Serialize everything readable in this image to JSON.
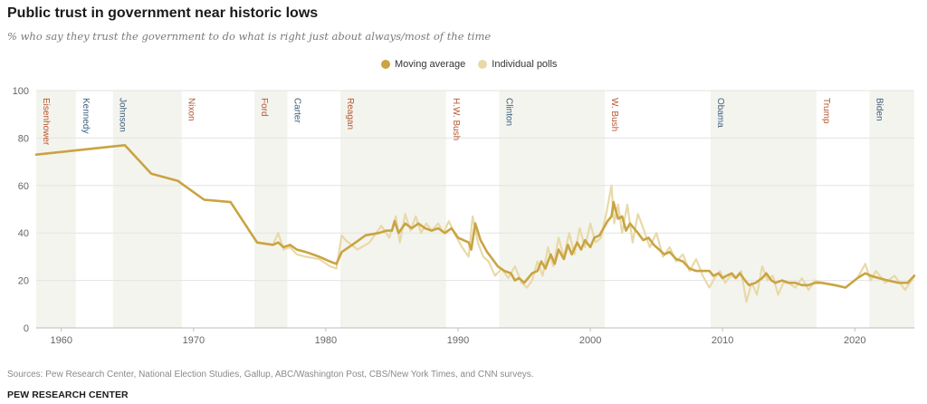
{
  "title": "Public trust in government near historic lows",
  "subtitle": "% who say they trust the government to do what is right just about always/most of the time",
  "legend": {
    "moving_average": "Moving average",
    "individual_polls": "Individual polls"
  },
  "colors": {
    "moving_average": "#c9a442",
    "individual_polls": "#e8d9a8",
    "shade": "#f4f4ee",
    "republican": "#b8562e",
    "democrat": "#3d5f7d",
    "axis_text": "#666666",
    "gridline": "#e3e3e3"
  },
  "source": "Sources: Pew Research Center, National Election Studies, Gallup, ABC/Washington Post, CBS/New York Times, and CNN surveys.",
  "brand": "PEW RESEARCH CENTER",
  "chart_data": {
    "type": "line",
    "title": "Public trust in government near historic lows",
    "xlabel": "",
    "ylabel": "",
    "xlim": [
      1958.1,
      2024.5
    ],
    "ylim": [
      0,
      100
    ],
    "yticks": [
      0,
      20,
      40,
      60,
      80,
      100
    ],
    "xticks": [
      1960,
      1970,
      1980,
      1990,
      2000,
      2010,
      2020
    ],
    "presidents": [
      {
        "name": "Eisenhower",
        "start": 1958.1,
        "end": 1961.1,
        "party": "R",
        "shaded": true
      },
      {
        "name": "Kennedy",
        "start": 1961.1,
        "end": 1963.9,
        "party": "D",
        "shaded": false
      },
      {
        "name": "Johnson",
        "start": 1963.9,
        "end": 1969.1,
        "party": "D",
        "shaded": true
      },
      {
        "name": "Nixon",
        "start": 1969.1,
        "end": 1974.6,
        "party": "R",
        "shaded": false
      },
      {
        "name": "Ford",
        "start": 1974.6,
        "end": 1977.1,
        "party": "R",
        "shaded": true
      },
      {
        "name": "Carter",
        "start": 1977.1,
        "end": 1981.1,
        "party": "D",
        "shaded": false
      },
      {
        "name": "Reagan",
        "start": 1981.1,
        "end": 1989.1,
        "party": "R",
        "shaded": true
      },
      {
        "name": "H.W. Bush",
        "start": 1989.1,
        "end": 1993.1,
        "party": "R",
        "shaded": false
      },
      {
        "name": "Clinton",
        "start": 1993.1,
        "end": 2001.1,
        "party": "D",
        "shaded": true
      },
      {
        "name": "W. Bush",
        "start": 2001.1,
        "end": 2009.1,
        "party": "R",
        "shaded": false
      },
      {
        "name": "Obama",
        "start": 2009.1,
        "end": 2017.1,
        "party": "D",
        "shaded": true
      },
      {
        "name": "Trump",
        "start": 2017.1,
        "end": 2021.1,
        "party": "R",
        "shaded": false
      },
      {
        "name": "Biden",
        "start": 2021.1,
        "end": 2024.5,
        "party": "D",
        "shaded": true
      }
    ],
    "series": [
      {
        "name": "Individual polls",
        "x": [
          1958.1,
          1964.8,
          1966.8,
          1968.8,
          1970.8,
          1972.8,
          1974.8,
          1976.0,
          1976.4,
          1976.8,
          1977.3,
          1977.8,
          1978.5,
          1979.5,
          1980.3,
          1980.8,
          1981.2,
          1981.5,
          1982.4,
          1983.3,
          1984.2,
          1984.8,
          1985.3,
          1985.6,
          1986.0,
          1986.4,
          1986.8,
          1987.2,
          1987.6,
          1988.0,
          1988.5,
          1988.9,
          1989.3,
          1989.8,
          1990.3,
          1990.8,
          1991.1,
          1991.5,
          1991.9,
          1992.3,
          1992.8,
          1993.3,
          1993.8,
          1994.3,
          1994.8,
          1995.2,
          1995.6,
          1996.0,
          1996.4,
          1996.8,
          1997.2,
          1997.6,
          1998.0,
          1998.4,
          1998.8,
          1999.2,
          1999.6,
          2000.0,
          2000.4,
          2000.8,
          2001.2,
          2001.6,
          2001.8,
          2002.1,
          2002.4,
          2002.8,
          2003.2,
          2003.6,
          2004.0,
          2004.5,
          2005.0,
          2005.5,
          2006.0,
          2006.5,
          2007.0,
          2007.5,
          2008.0,
          2008.5,
          2009.0,
          2009.4,
          2009.8,
          2010.2,
          2010.6,
          2011.0,
          2011.4,
          2011.8,
          2012.2,
          2012.6,
          2013.0,
          2013.4,
          2013.8,
          2014.2,
          2014.6,
          2015.0,
          2015.5,
          2016.0,
          2016.5,
          2017.0,
          2017.5,
          2018.5,
          2019.3,
          2020.2,
          2020.8,
          2021.2,
          2021.6,
          2022.3,
          2023.0,
          2023.8,
          2024.5
        ],
        "values": [
          73,
          77,
          65,
          62,
          54,
          53,
          36,
          35,
          40,
          33,
          34,
          31,
          30,
          29,
          26,
          25,
          39,
          37,
          33,
          36,
          43,
          38,
          47,
          36,
          48,
          41,
          47,
          40,
          44,
          41,
          44,
          40,
          45,
          39,
          34,
          30,
          47,
          36,
          30,
          28,
          22,
          25,
          21,
          26,
          19,
          17,
          20,
          28,
          22,
          34,
          26,
          38,
          30,
          40,
          31,
          42,
          34,
          44,
          36,
          38,
          48,
          60,
          44,
          52,
          40,
          52,
          36,
          48,
          42,
          34,
          40,
          30,
          34,
          28,
          31,
          24,
          29,
          22,
          17,
          21,
          24,
          19,
          22,
          21,
          24,
          11,
          19,
          14,
          26,
          20,
          22,
          14,
          19,
          19,
          17,
          21,
          16,
          20,
          19,
          18,
          17,
          21,
          27,
          20,
          24,
          19,
          22,
          16,
          22
        ]
      },
      {
        "name": "Moving average",
        "x": [
          1958.1,
          1964.8,
          1966.8,
          1968.8,
          1970.8,
          1972.8,
          1974.8,
          1976.0,
          1976.4,
          1976.8,
          1977.3,
          1977.8,
          1978.5,
          1979.5,
          1980.3,
          1980.8,
          1981.2,
          1982.0,
          1983.0,
          1984.0,
          1984.6,
          1985.0,
          1985.2,
          1985.5,
          1986.0,
          1986.5,
          1987.0,
          1987.5,
          1988.0,
          1988.5,
          1989.0,
          1989.5,
          1990.0,
          1990.4,
          1990.8,
          1991.0,
          1991.3,
          1991.7,
          1992.2,
          1992.6,
          1993.0,
          1993.5,
          1994.0,
          1994.3,
          1994.6,
          1995.0,
          1995.3,
          1995.6,
          1996.0,
          1996.3,
          1996.6,
          1997.0,
          1997.3,
          1997.6,
          1998.0,
          1998.3,
          1998.6,
          1999.0,
          1999.3,
          1999.6,
          2000.0,
          2000.3,
          2000.7,
          2001.0,
          2001.3,
          2001.6,
          2001.75,
          2001.9,
          2002.1,
          2002.4,
          2002.7,
          2003.0,
          2003.3,
          2003.6,
          2004.0,
          2004.4,
          2004.8,
          2005.2,
          2005.6,
          2006.0,
          2006.5,
          2007.0,
          2007.5,
          2008.0,
          2008.5,
          2009.0,
          2009.3,
          2009.7,
          2010.0,
          2010.3,
          2010.7,
          2011.0,
          2011.3,
          2011.7,
          2012.0,
          2012.5,
          2013.0,
          2013.3,
          2013.7,
          2014.0,
          2014.5,
          2015.0,
          2015.5,
          2016.0,
          2016.5,
          2017.0,
          2017.5,
          2018.5,
          2019.3,
          2020.2,
          2020.8,
          2021.2,
          2021.8,
          2022.5,
          2023.3,
          2024.0,
          2024.5
        ],
        "values": [
          73,
          77,
          65,
          62,
          54,
          53,
          36,
          35,
          36,
          34,
          35,
          33,
          32,
          30,
          28,
          27,
          32,
          35,
          39,
          40,
          41,
          41,
          45,
          40,
          44,
          42,
          44,
          42,
          41,
          42,
          40,
          42,
          38,
          37,
          36,
          33,
          44,
          37,
          32,
          29,
          26,
          24,
          23,
          20,
          21,
          19,
          21,
          23,
          24,
          28,
          25,
          31,
          27,
          33,
          29,
          35,
          31,
          36,
          33,
          37,
          34,
          38,
          39,
          42,
          45,
          47,
          53,
          50,
          46,
          47,
          41,
          44,
          42,
          40,
          37,
          38,
          35,
          33,
          31,
          32,
          29,
          28,
          25,
          24,
          24,
          24,
          22,
          23,
          21,
          22,
          23,
          21,
          23,
          20,
          18,
          19,
          21,
          23,
          20,
          19,
          20,
          19,
          19,
          18,
          18,
          19,
          19,
          18,
          17,
          21,
          23,
          22,
          21,
          20,
          19,
          19,
          22
        ]
      }
    ]
  }
}
